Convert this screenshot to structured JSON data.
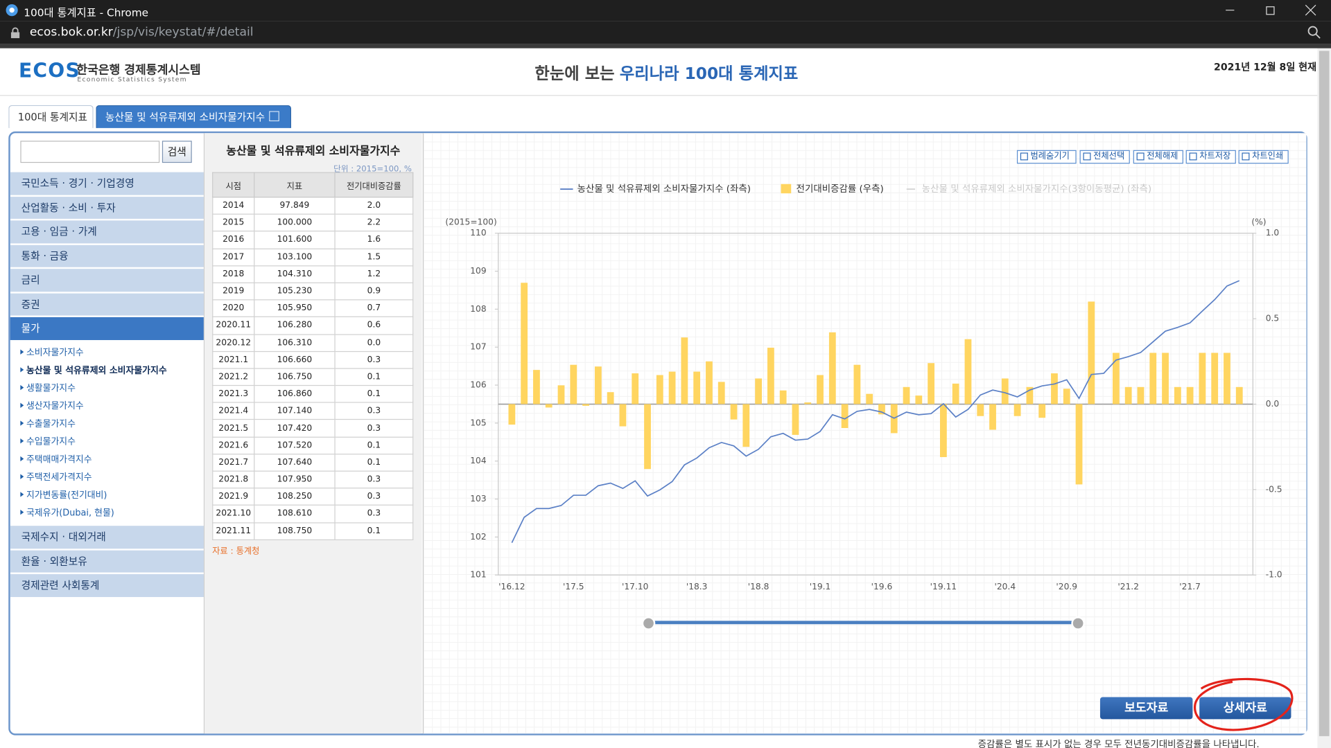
{
  "browser": {
    "title": "100대 통계지표 - Chrome",
    "url": [
      "ecos.bok.or.kr",
      "/jsp/vis/keystat/#/detail"
    ]
  },
  "header": {
    "logo": "ECOS",
    "org": "한국은행 경제통계시스템",
    "org_en": "Economic Statistics System",
    "title": [
      "한눈에 보는",
      "우리나라 100대 통계지표"
    ],
    "date": "2021년 12월 8일 현재"
  },
  "tabs": [
    "100대 통계지표",
    "농산물 및 석유류제외 소비자물가지수"
  ],
  "sidebar": {
    "search_button": "검색",
    "menu_top": [
      "국민소득 · 경기 · 기업경영",
      "산업활동 · 소비 · 투자",
      "고용 · 임금 · 가계",
      "통화 · 금융",
      "금리",
      "증권",
      "물가"
    ],
    "submenu": [
      "소비자물가지수",
      "농산물 및 석유류제외 소비자물가지수",
      "생활물가지수",
      "생산자물가지수",
      "수출물가지수",
      "수입물가지수",
      "주택매매가격지수",
      "주택전세가격지수",
      "지가변동률(전기대비)",
      "국제유가(Dubai, 현물)"
    ],
    "menu_bottom": [
      "국제수지 · 대외거래",
      "환율 · 외환보유",
      "경제관련 사회통계"
    ]
  },
  "table": {
    "title": "농산물 및 석유류제외 소비자물가지수",
    "unit": "단위 : 2015=100, %",
    "header": [
      "시점",
      "지표",
      "전기대비증감률"
    ],
    "rows": [
      [
        "2014",
        "97.849",
        "2.0"
      ],
      [
        "2015",
        "100.000",
        "2.2"
      ],
      [
        "2016",
        "101.600",
        "1.6"
      ],
      [
        "2017",
        "103.100",
        "1.5"
      ],
      [
        "2018",
        "104.310",
        "1.2"
      ],
      [
        "2019",
        "105.230",
        "0.9"
      ],
      [
        "2020",
        "105.950",
        "0.7"
      ],
      [
        "2020.11",
        "106.280",
        "0.6"
      ],
      [
        "2020.12",
        "106.310",
        "0.0"
      ],
      [
        "2021.1",
        "106.660",
        "0.3"
      ],
      [
        "2021.2",
        "106.750",
        "0.1"
      ],
      [
        "2021.3",
        "106.860",
        "0.1"
      ],
      [
        "2021.4",
        "107.140",
        "0.3"
      ],
      [
        "2021.5",
        "107.420",
        "0.3"
      ],
      [
        "2021.6",
        "107.520",
        "0.1"
      ],
      [
        "2021.7",
        "107.640",
        "0.1"
      ],
      [
        "2021.8",
        "107.950",
        "0.3"
      ],
      [
        "2021.9",
        "108.250",
        "0.3"
      ],
      [
        "2021.10",
        "108.610",
        "0.3"
      ],
      [
        "2021.11",
        "108.750",
        "0.1"
      ]
    ],
    "source": "자료 : 통계청"
  },
  "toolbar": [
    "범례숨기기",
    "전체선택",
    "전체해제",
    "차트저장",
    "차트인쇄"
  ],
  "chart_data": {
    "type": "combo",
    "legend": "top",
    "categories": [
      "'16.12",
      null,
      null,
      null,
      null,
      "'17.5",
      null,
      null,
      null,
      null,
      "'17.10",
      null,
      null,
      null,
      null,
      "'18.3",
      null,
      null,
      null,
      null,
      "'18.8",
      null,
      null,
      null,
      null,
      "'19.1",
      null,
      null,
      null,
      null,
      "'19.6",
      null,
      null,
      null,
      null,
      "'19.11",
      null,
      null,
      null,
      null,
      "'20.4",
      null,
      null,
      null,
      null,
      "'20.9",
      null,
      null,
      null,
      null,
      "'21.2",
      null,
      null,
      null,
      null,
      "'21.7",
      null,
      null,
      null,
      null
    ],
    "series": [
      {
        "name": "농산물 및 석유류제외 소비자물가지수 (좌측)",
        "type": "line",
        "axis": "y",
        "color": "#5b80c6",
        "values": [
          101.85,
          102.52,
          102.75,
          102.75,
          102.83,
          103.1,
          103.1,
          103.35,
          103.42,
          103.28,
          103.48,
          103.08,
          103.24,
          103.46,
          103.9,
          104.08,
          104.35,
          104.49,
          104.4,
          104.13,
          104.31,
          104.64,
          104.73,
          104.55,
          104.58,
          104.78,
          105.22,
          105.11,
          105.31,
          105.36,
          105.29,
          105.13,
          105.29,
          105.22,
          105.25,
          105.51,
          105.16,
          105.36,
          105.74,
          105.87,
          105.8,
          105.69,
          105.87,
          105.98,
          106.03,
          106.14,
          105.65,
          106.28,
          106.31,
          106.66,
          106.75,
          106.86,
          107.14,
          107.42,
          107.52,
          107.64,
          107.95,
          108.25,
          108.61,
          108.75
        ]
      },
      {
        "name": "전기대비증감률 (우측)",
        "type": "bar",
        "axis": "y2",
        "color": "#ffd560",
        "values": [
          -0.12,
          0.71,
          0.2,
          -0.02,
          0.11,
          0.23,
          -0.01,
          0.22,
          0.07,
          -0.13,
          0.18,
          -0.38,
          0.17,
          0.19,
          0.39,
          0.19,
          0.25,
          0.13,
          -0.09,
          -0.25,
          0.15,
          0.33,
          0.08,
          -0.18,
          0.01,
          0.17,
          0.42,
          -0.14,
          0.23,
          0.06,
          -0.06,
          -0.17,
          0.1,
          0.05,
          0.24,
          -0.31,
          0.12,
          0.38,
          -0.07,
          -0.15,
          0.15,
          -0.07,
          0.1,
          -0.08,
          0.18,
          0.09,
          -0.47,
          0.6,
          0.0,
          0.3,
          0.1,
          0.1,
          0.3,
          0.3,
          0.1,
          0.1,
          0.3,
          0.3,
          0.3,
          0.1
        ]
      },
      {
        "name": "농산물 및 석유류제외 소비자물가지수(3항이동평균) (좌측)",
        "type": "line",
        "axis": "y",
        "color": "#d4d4d4",
        "hidden": true
      }
    ],
    "ylabel": "(2015=100)",
    "ylim": [
      101,
      110
    ],
    "yticks": [
      101,
      102,
      103,
      104,
      105,
      106,
      107,
      108,
      109,
      110
    ],
    "y2label": "(%)",
    "y2lim": [
      -1,
      1
    ],
    "y2ticks": [
      {
        "value": -1,
        "label": "-1.0"
      },
      {
        "value": -0.5,
        "label": "-0.5"
      },
      {
        "value": 0,
        "label": "0.0"
      },
      {
        "value": 0.5,
        "label": "0.5"
      },
      {
        "value": 1,
        "label": "1.0"
      }
    ],
    "grid": false
  },
  "buttons": [
    "보도자료",
    "상세자료"
  ],
  "footnote": "증감률은 별도 표시가 없는 경우 모두 전년동기대비증감률을 나타냅니다."
}
